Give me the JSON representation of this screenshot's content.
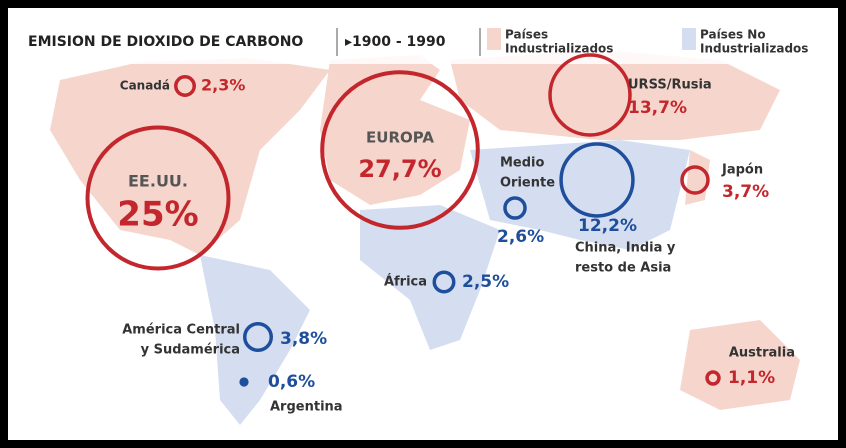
{
  "header": {
    "title": "EMISION DE DIOXIDO DE CARBONO",
    "period": "▸1900 - 1990"
  },
  "legend": [
    {
      "lines": [
        "Países",
        "Industrializados"
      ],
      "color": "#f6d6cc"
    },
    {
      "lines": [
        "Países No",
        "Industrializados"
      ],
      "color": "#d4def0"
    }
  ],
  "colors": {
    "industrialized": "#c3262c",
    "non_industrialized": "#1f4f9c"
  },
  "regions": [
    {
      "name": [
        "Canadá"
      ],
      "value": 2.3,
      "value_label": "2,3%",
      "group": "industrialized"
    },
    {
      "name": [
        "EE.UU."
      ],
      "value": 25,
      "value_label": "25%",
      "group": "industrialized"
    },
    {
      "name": [
        "EUROPA"
      ],
      "value": 27.7,
      "value_label": "27,7%",
      "group": "industrialized"
    },
    {
      "name": [
        "URSS/Rusia"
      ],
      "value": 13.7,
      "value_label": "13,7%",
      "group": "industrialized"
    },
    {
      "name": [
        "Japón"
      ],
      "value": 3.7,
      "value_label": "3,7%",
      "group": "industrialized"
    },
    {
      "name": [
        "Medio",
        "Oriente"
      ],
      "value": 2.6,
      "value_label": "2,6%",
      "group": "non_industrialized"
    },
    {
      "name": [
        "China, India y",
        "resto de Asia"
      ],
      "value": 12.2,
      "value_label": "12,2%",
      "group": "non_industrialized"
    },
    {
      "name": [
        "África"
      ],
      "value": 2.5,
      "value_label": "2,5%",
      "group": "non_industrialized"
    },
    {
      "name": [
        "América Central",
        "y Sudamérica"
      ],
      "value": 3.8,
      "value_label": "3,8%",
      "group": "non_industrialized"
    },
    {
      "name": [
        "Argentina"
      ],
      "value": 0.6,
      "value_label": "0,6%",
      "group": "non_industrialized",
      "filled": true
    },
    {
      "name": [
        "Australia"
      ],
      "value": 1.1,
      "value_label": "1,1%",
      "group": "industrialized"
    }
  ]
}
